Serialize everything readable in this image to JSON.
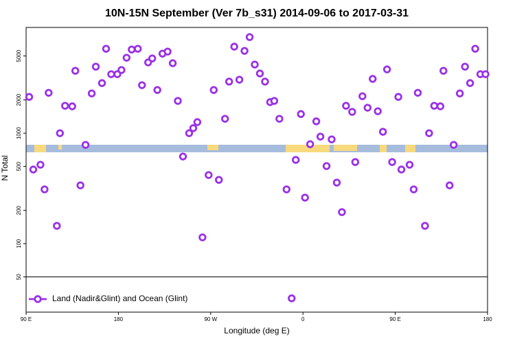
{
  "chart_data": {
    "type": "scatter",
    "title": "10N-15N September (Ver 7b_s31)   2014-09-06 to 2017-03-31",
    "x_label": "Longitude (deg E)",
    "y_label": "N Total",
    "log_scale": true,
    "legend": "bottom left",
    "xlim": [
      90,
      540
    ],
    "xticks": [
      {
        "value": 90,
        "label": "90 E"
      },
      180,
      {
        "value": 270,
        "label": "90 W"
      },
      {
        "value": 360,
        "label": "0"
      },
      {
        "value": 450,
        "label": "90 E"
      },
      {
        "value": 540,
        "label": "180"
      }
    ],
    "ylim": [
      24,
      9060
    ],
    "yticks": [
      50,
      100,
      200,
      500,
      1000,
      2000,
      5000
    ],
    "x": [
      93,
      97,
      104,
      108,
      112,
      120,
      123,
      128,
      135,
      138,
      143,
      148,
      154,
      158,
      164,
      168,
      173,
      179,
      183,
      188,
      193,
      199,
      203,
      209,
      213,
      218,
      223,
      228,
      233,
      238,
      243,
      249,
      253,
      257,
      262,
      268,
      273,
      278,
      284,
      288,
      293,
      298,
      303,
      308,
      313,
      318,
      323,
      328,
      332,
      337,
      344,
      349,
      353,
      358,
      362,
      367,
      373,
      377,
      383,
      388,
      393,
      398,
      402,
      408,
      411,
      418,
      423,
      428,
      433,
      438,
      442,
      447,
      453,
      456,
      464,
      468,
      472,
      479,
      483,
      488,
      494,
      497,
      503,
      507,
      513,
      518,
      523,
      528,
      533,
      538
    ],
    "series": [
      {
        "name": "Land (Nadir&Glint) and Ocean (Glint)",
        "color": "#9a30e8",
        "values": [
          2130,
          469,
          518,
          310,
          2320,
          145,
          1000,
          1770,
          1750,
          3670,
          337,
          784,
          2290,
          4000,
          2840,
          5810,
          3420,
          3420,
          3730,
          4820,
          5720,
          5810,
          2720,
          4370,
          4750,
          2460,
          5250,
          5480,
          4300,
          1960,
          615,
          1000,
          1110,
          1260,
          114,
          418,
          2460,
          378,
          1350,
          2930,
          6070,
          3050,
          5560,
          7410,
          4180,
          3470,
          2930,
          1910,
          1960,
          1350,
          310,
          32,
          573,
          1490,
          261,
          795,
          1280,
          931,
          504,
          879,
          357,
          193,
          1770,
          1560,
          548,
          2160,
          1700,
          3100,
          1580,
          1030,
          3780,
          548,
          2130,
          469,
          518,
          310,
          2320,
          145,
          1000,
          1770,
          1750,
          3670,
          337,
          784,
          2290,
          4000,
          2840,
          5810,
          3420,
          3420
        ]
      }
    ]
  }
}
